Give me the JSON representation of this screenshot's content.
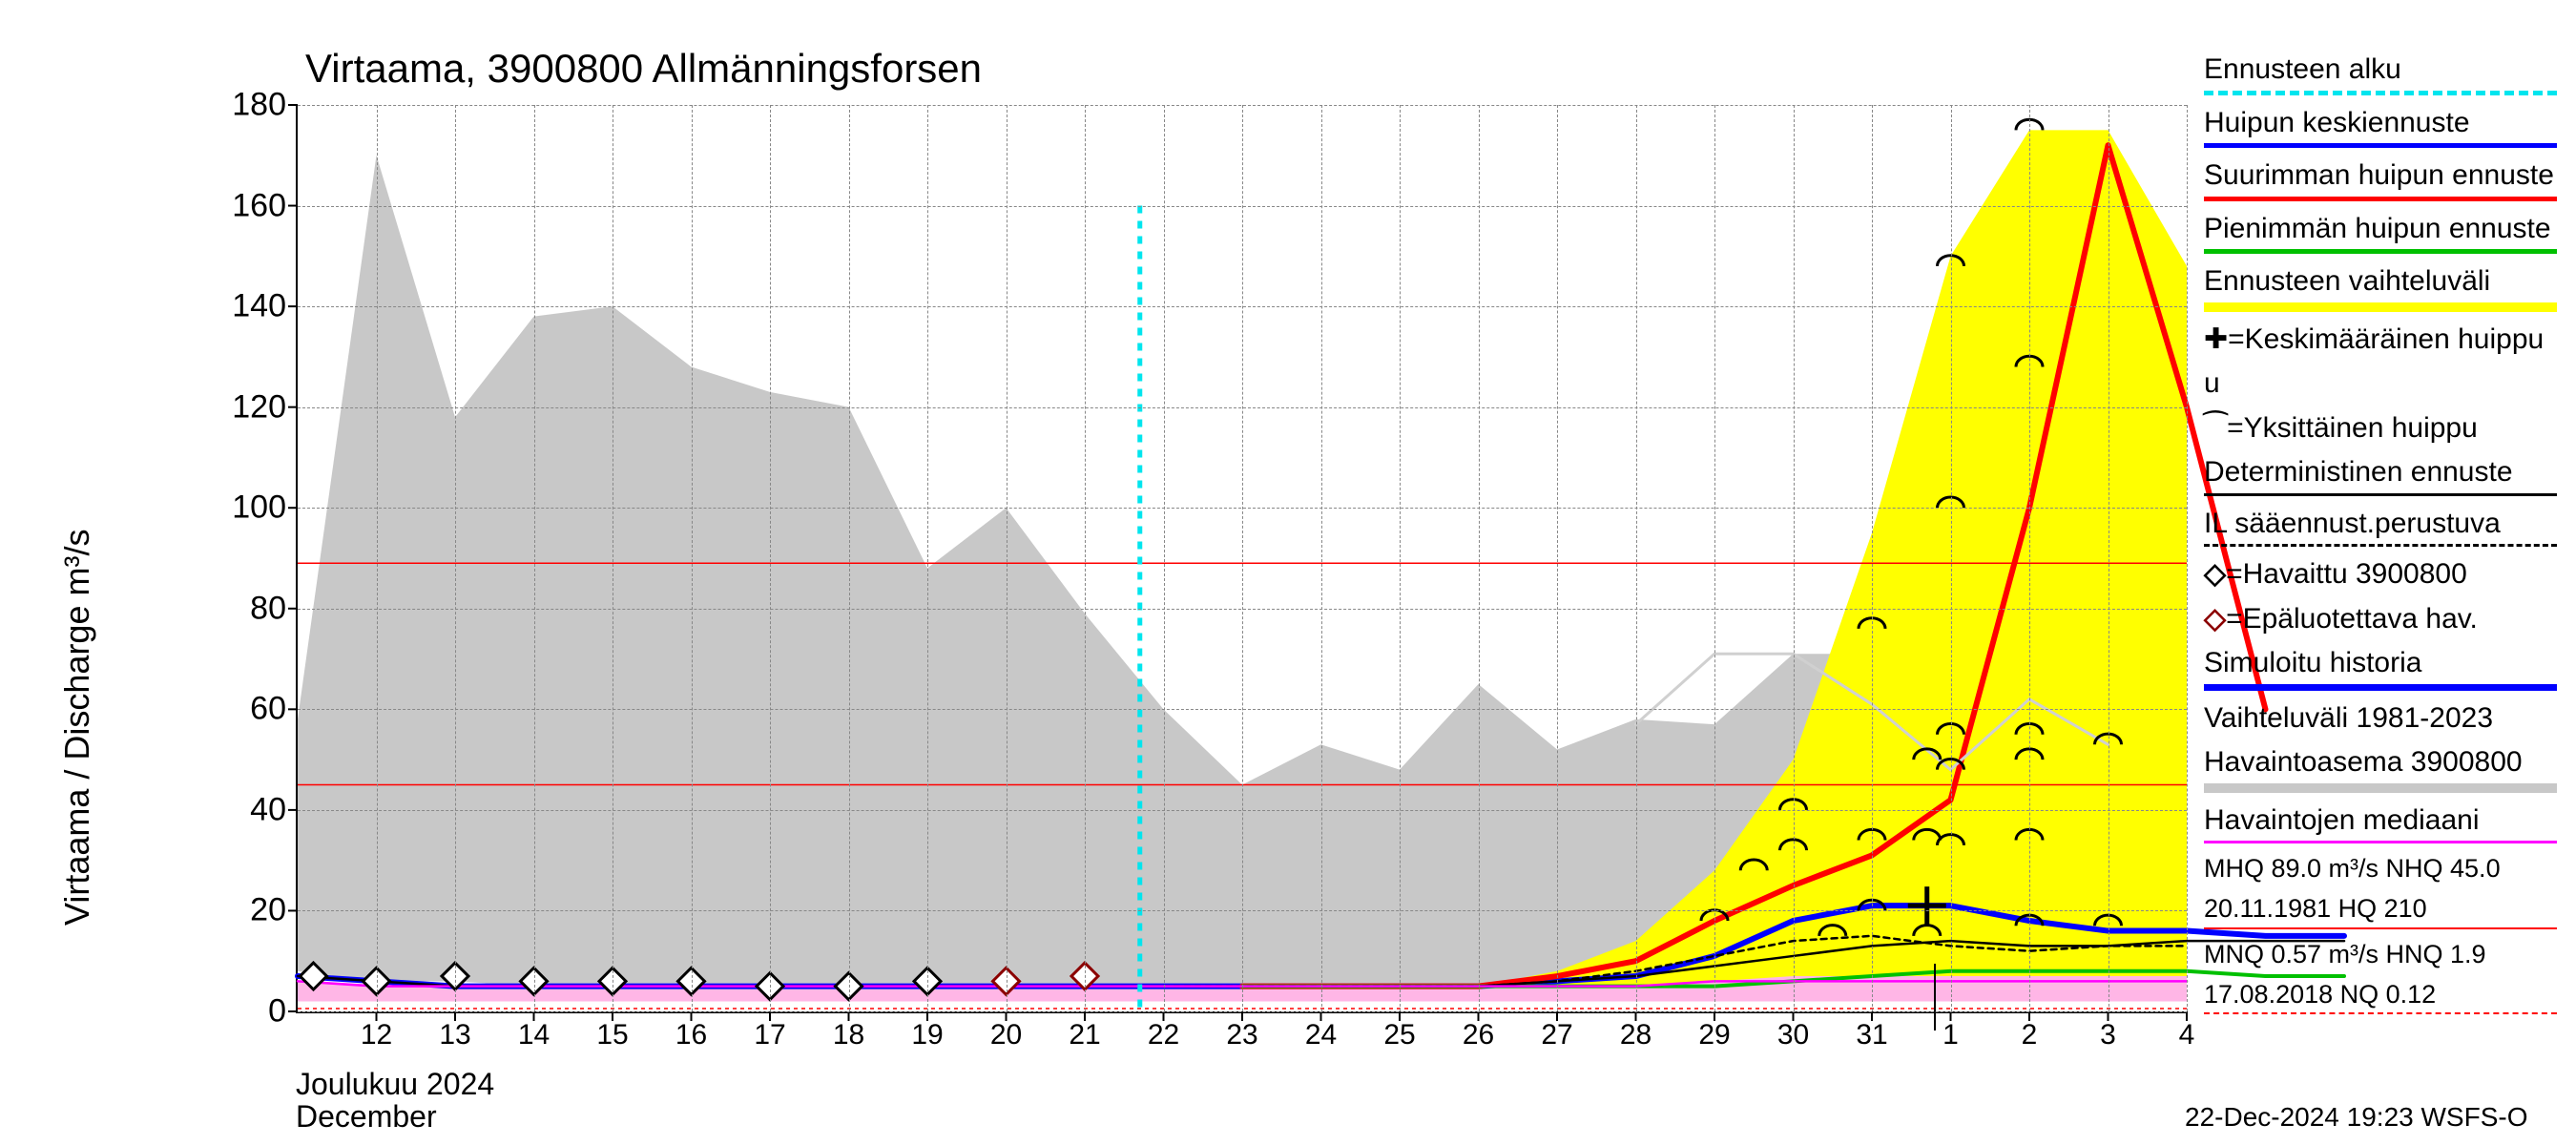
{
  "chart": {
    "type": "line",
    "title": "Virtaama, 3900800 Allmänningsforsen",
    "ylabel": "Virtaama / Discharge    m³/s",
    "xlabel_fi": "Joulukuu  2024",
    "xlabel_en": "December",
    "footer": "22-Dec-2024 19:23 WSFS-O",
    "title_fontsize": 42,
    "label_fontsize": 36,
    "tick_fontsize": 34,
    "legend_fontsize": 30,
    "ylim": [
      0,
      180
    ],
    "yticks": [
      0,
      20,
      40,
      60,
      80,
      100,
      120,
      140,
      160,
      180
    ],
    "xticks": [
      "12",
      "13",
      "14",
      "15",
      "16",
      "17",
      "18",
      "19",
      "20",
      "21",
      "22",
      "23",
      "24",
      "25",
      "26",
      "27",
      "28",
      "29",
      "30",
      "31",
      "1",
      "2",
      "3",
      "4"
    ],
    "xstart": 11,
    "xend": 35,
    "background_color": "#ffffff",
    "grid_color": "#888888",
    "ref_lines": {
      "mhq": {
        "value": 89.0,
        "color": "#ff0000",
        "width": 1.5,
        "dash": "none"
      },
      "nhq": {
        "value": 45.0,
        "color": "#ff0000",
        "width": 1.5,
        "dash": "none"
      },
      "mnq": {
        "value": 0.57,
        "color": "#ff0000",
        "width": 1.5,
        "dash": "4,4"
      }
    },
    "forecast_start_x": 21.7,
    "forecast_start_top_y": 160,
    "forecast_start_color": "#00e5ee",
    "forecast_start_width": 5,
    "forecast_start_dash": "8,8",
    "now_marker_x": 31.8,
    "grey_band": {
      "color": "#c8c8c8",
      "upper": [
        58,
        170,
        118,
        138,
        140,
        128,
        123,
        120,
        88,
        100,
        79,
        60,
        45,
        53,
        48,
        65,
        52,
        58,
        57,
        71,
        71,
        61,
        48,
        62,
        53
      ],
      "lower": [
        8,
        6,
        6,
        5,
        5,
        5,
        5,
        5,
        5,
        5,
        5,
        5,
        5,
        5,
        5,
        5,
        5,
        5,
        5,
        5,
        5,
        5,
        5,
        5,
        5
      ]
    },
    "yellow_band": {
      "color": "#ffff00",
      "upper": [
        5,
        5,
        5,
        5,
        8,
        14,
        28,
        50,
        95,
        150,
        175,
        175,
        148
      ],
      "lower": [
        5,
        5,
        5,
        5,
        5,
        5,
        5,
        5,
        5,
        5,
        5,
        5,
        5
      ],
      "xstart": 23
    },
    "pink_band": {
      "color": "#ffb6e6",
      "upper": [
        6,
        5,
        5,
        5,
        5,
        5,
        5,
        5,
        5,
        5,
        5,
        5,
        5,
        5,
        5,
        5,
        5,
        5,
        6,
        7,
        7,
        7,
        7,
        7,
        7
      ],
      "lower": [
        2,
        2,
        2,
        2,
        2,
        2,
        2,
        2,
        2,
        2,
        2,
        2,
        2,
        2,
        2,
        2,
        2,
        2,
        2,
        2,
        2,
        2,
        2,
        2,
        2
      ]
    },
    "series": {
      "blue_hist_forecast": {
        "color": "#0000ff",
        "width": 6,
        "y": [
          7,
          6,
          5,
          5,
          5,
          5,
          5,
          5,
          5,
          5,
          5,
          5,
          5,
          5,
          5,
          5,
          6,
          7,
          11,
          18,
          21,
          21,
          18,
          16,
          16,
          15,
          15
        ]
      },
      "red_max": {
        "color": "#ff0000",
        "width": 6,
        "xstart": 23,
        "y": [
          5,
          5,
          5,
          5,
          7,
          10,
          18,
          25,
          31,
          42,
          100,
          172,
          120,
          60
        ]
      },
      "green_min": {
        "color": "#00c000",
        "width": 4,
        "xstart": 23,
        "y": [
          5,
          5,
          5,
          5,
          5,
          5,
          5,
          6,
          7,
          8,
          8,
          8,
          8,
          7,
          7
        ]
      },
      "black_det": {
        "color": "#000000",
        "width": 2.5,
        "y": [
          7,
          6,
          5,
          5,
          5,
          5,
          5,
          5,
          5,
          5,
          5,
          5,
          5,
          5,
          5,
          5,
          6,
          7,
          9,
          11,
          13,
          14,
          13,
          13,
          14,
          14,
          14
        ]
      },
      "black_dash_il": {
        "color": "#000000",
        "width": 2.5,
        "dash": "6,5",
        "xstart": 22,
        "y": [
          5,
          5,
          5,
          5,
          5,
          6,
          8,
          11,
          14,
          15,
          13,
          12,
          13,
          13
        ]
      },
      "magenta_median": {
        "color": "#ff00ff",
        "width": 2.5,
        "y": [
          6,
          5,
          5,
          5,
          5,
          5,
          5,
          5,
          5,
          5,
          5,
          5,
          5,
          5,
          5,
          5,
          5,
          5,
          6,
          6,
          6,
          6,
          6,
          6,
          6
        ]
      },
      "grey_light_upper": {
        "color": "#d0d0d0",
        "width": 3,
        "xstart": 28,
        "y": [
          57,
          71,
          71,
          61,
          48,
          62,
          53
        ]
      }
    },
    "markers": {
      "observed": {
        "symbol": "diamond",
        "color": "#000000",
        "fill": "#ffffff",
        "size": 14,
        "points": [
          [
            11.2,
            7
          ],
          [
            12,
            6
          ],
          [
            13,
            7
          ],
          [
            14,
            6
          ],
          [
            15,
            6
          ],
          [
            16,
            6
          ],
          [
            17,
            5
          ],
          [
            18,
            5
          ],
          [
            19,
            6
          ]
        ]
      },
      "unreliable": {
        "symbol": "diamond",
        "color": "#8b0000",
        "fill": "#ffffff",
        "size": 14,
        "points": [
          [
            20,
            6
          ],
          [
            21,
            7
          ]
        ]
      },
      "peak_mean": {
        "symbol": "plus",
        "color": "#000000",
        "size": 20,
        "weight": 5,
        "points": [
          [
            31.7,
            21
          ]
        ]
      },
      "individual_peaks": {
        "symbol": "arc",
        "color": "#000000",
        "size": 14,
        "weight": 3,
        "points": [
          [
            29,
            18
          ],
          [
            29.5,
            28
          ],
          [
            30,
            32
          ],
          [
            30,
            40
          ],
          [
            30.5,
            15
          ],
          [
            31,
            20
          ],
          [
            31,
            34
          ],
          [
            31,
            76
          ],
          [
            31.7,
            15
          ],
          [
            31.7,
            34
          ],
          [
            31.7,
            50
          ],
          [
            32,
            33
          ],
          [
            32,
            48
          ],
          [
            32,
            55
          ],
          [
            32,
            100
          ],
          [
            32,
            148
          ],
          [
            33,
            17
          ],
          [
            33,
            34
          ],
          [
            33,
            50
          ],
          [
            33,
            55
          ],
          [
            33,
            128
          ],
          [
            33,
            175
          ],
          [
            34,
            17
          ],
          [
            34,
            53
          ]
        ]
      }
    },
    "legend": [
      {
        "label": "Ennusteen alku",
        "line_color": "#00e5ee",
        "line_width": 5,
        "dash": "8,8"
      },
      {
        "label": "Huipun keskiennuste",
        "line_color": "#0000ff",
        "line_width": 5
      },
      {
        "label": "Suurimman huipun ennuste",
        "line_color": "#ff0000",
        "line_width": 5
      },
      {
        "label": "Pienimmän huipun ennuste",
        "line_color": "#00c000",
        "line_width": 5
      },
      {
        "label": "Ennusteen vaihteluväli",
        "line_color": "#ffff00",
        "line_width": 10
      },
      {
        "label": "✚=Keskimääräinen huippu",
        "wrap": "u"
      },
      {
        "label": "⁀=Yksittäinen huippu"
      },
      {
        "label": "Deterministinen ennuste",
        "line_color": "#000000",
        "line_width": 3
      },
      {
        "label": "IL sääennust.perustuva",
        "line_color": "#000000",
        "line_width": 3,
        "dash": "6,5"
      },
      {
        "label": "◇=Havaittu 3900800",
        "marker_color": "#000000"
      },
      {
        "label": "◇=Epäluotettava hav.",
        "marker_color": "#8b0000"
      },
      {
        "label": "Simuloitu historia",
        "line_color": "#0000ff",
        "line_width": 7
      },
      {
        "label": "Vaihteluväli 1981-2023"
      },
      {
        "label": "Havaintoasema 3900800",
        "line_color": "#c8c8c8",
        "line_width": 10
      },
      {
        "label": "Havaintojen mediaani",
        "line_color": "#ff00ff",
        "line_width": 3
      },
      {
        "label": "MHQ 89.0 m³/s NHQ 45.0",
        "small": true
      },
      {
        "label": "20.11.1981 HQ  210",
        "small": true,
        "line_color": "#ff0000",
        "line_width": 2
      },
      {
        "label": "MNQ 0.57 m³/s HNQ  1.9",
        "small": true
      },
      {
        "label": "17.08.2018 NQ 0.12",
        "small": true,
        "line_color": "#ff0000",
        "line_width": 2,
        "dash": "5,5"
      }
    ]
  }
}
